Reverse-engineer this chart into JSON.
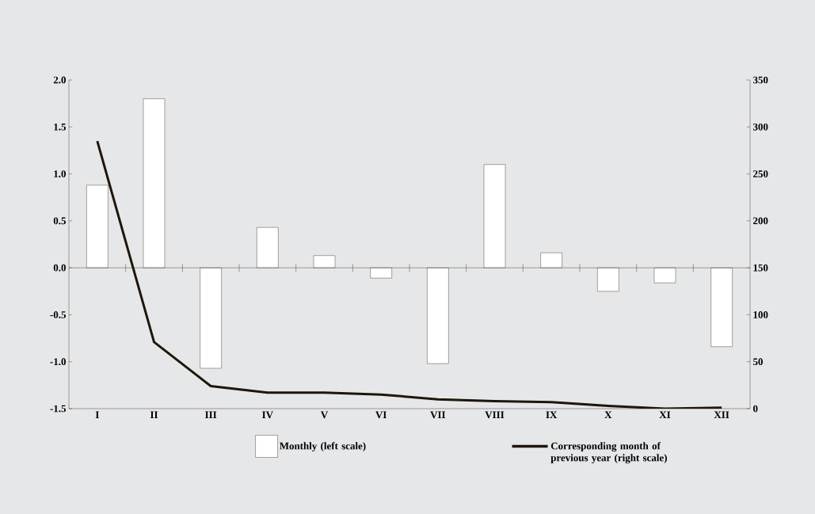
{
  "chart_data": {
    "type": "bar",
    "categories": [
      "I",
      "II",
      "III",
      "IV",
      "V",
      "VI",
      "VII",
      "VIII",
      "IX",
      "X",
      "XI",
      "XII"
    ],
    "series": [
      {
        "name": "Monthly (left scale)",
        "color": "#ffffff",
        "values": [
          0.88,
          1.8,
          -1.07,
          0.43,
          0.13,
          -0.11,
          -1.02,
          1.1,
          0.16,
          -0.25,
          -0.16,
          -0.84
        ]
      },
      {
        "name": "Corresponding month of previous year (right scale)",
        "type": "line",
        "axis": "y2",
        "color": "#1e1608",
        "values": [
          285,
          71,
          24,
          17,
          17,
          15,
          10,
          8,
          7,
          3,
          0,
          1
        ]
      }
    ],
    "ylim": [
      -1.5,
      2.0
    ],
    "yticks": [
      -1.5,
      {
        "value": -1.0,
        "label": "-1.0"
      },
      -0.5,
      {
        "value": 0.0,
        "label": "0.0"
      },
      0.5,
      {
        "value": 1.0,
        "label": "1.0"
      },
      1.5,
      {
        "value": 2.0,
        "label": "2.0"
      }
    ],
    "y2lim": [
      0,
      350
    ],
    "y2ticks": [
      0,
      50,
      100,
      150,
      200,
      250,
      300,
      350
    ],
    "legend": "bottom"
  }
}
